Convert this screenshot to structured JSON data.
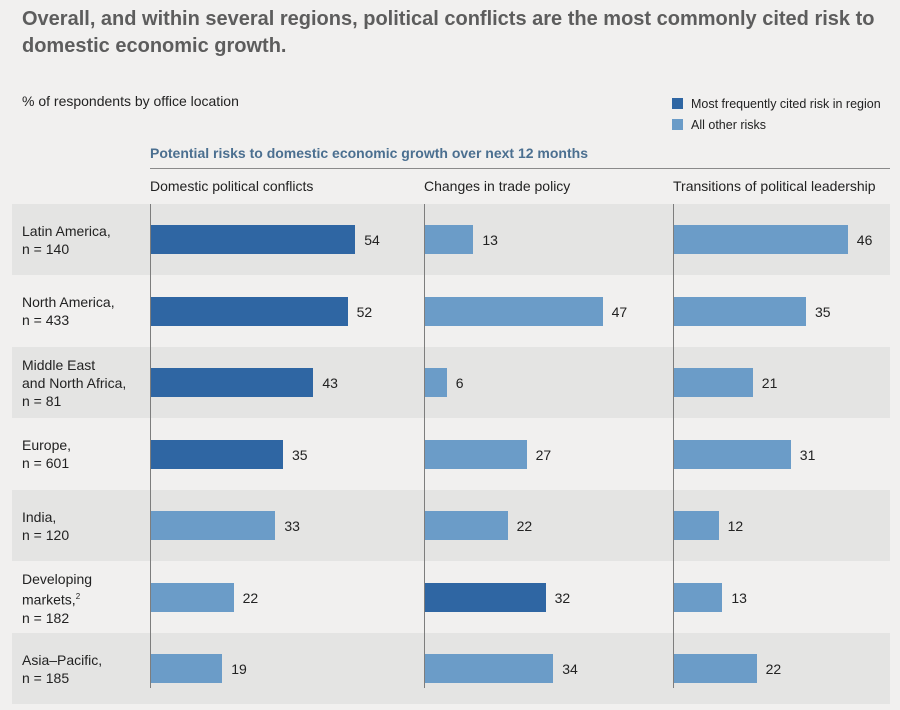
{
  "title": "Overall, and within several regions, political conflicts are the most commonly cited risk to domestic economic growth.",
  "subtitle": "% of respondents by office location",
  "legend": {
    "most_frequent": "Most frequently cited risk in region",
    "all_other": "All other risks"
  },
  "colors": {
    "most_frequent": "#2f66a3",
    "all_other": "#6b9cc8"
  },
  "section_title": "Potential risks to domestic economic growth over next 12 months",
  "chart_data": {
    "type": "bar",
    "orientation": "horizontal",
    "columns": [
      "Domestic political conflicts",
      "Changes in trade policy",
      "Transitions of political leadership"
    ],
    "rows": [
      {
        "label_lines": [
          "Latin America,",
          "n = 140"
        ],
        "values": [
          54,
          13,
          46
        ],
        "highlight": [
          true,
          false,
          false
        ]
      },
      {
        "label_lines": [
          "North America,",
          "n = 433"
        ],
        "values": [
          52,
          47,
          35
        ],
        "highlight": [
          true,
          false,
          false
        ]
      },
      {
        "label_lines": [
          "Middle East",
          "and North Africa,",
          "n = 81"
        ],
        "values": [
          43,
          6,
          21
        ],
        "highlight": [
          true,
          false,
          false
        ]
      },
      {
        "label_lines": [
          "Europe,",
          "n = 601"
        ],
        "values": [
          35,
          27,
          31
        ],
        "highlight": [
          true,
          false,
          false
        ]
      },
      {
        "label_lines": [
          "India,",
          "n = 120"
        ],
        "values": [
          33,
          22,
          12
        ],
        "highlight": [
          false,
          false,
          false
        ]
      },
      {
        "label_lines": [
          "Developing",
          "markets,",
          "n = 182"
        ],
        "label_footnote": "2",
        "values": [
          22,
          32,
          13
        ],
        "highlight": [
          false,
          true,
          false
        ]
      },
      {
        "label_lines": [
          "Asia–Pacific,",
          "n = 185"
        ],
        "values": [
          19,
          34,
          22
        ],
        "highlight": [
          false,
          false,
          false
        ]
      }
    ]
  }
}
